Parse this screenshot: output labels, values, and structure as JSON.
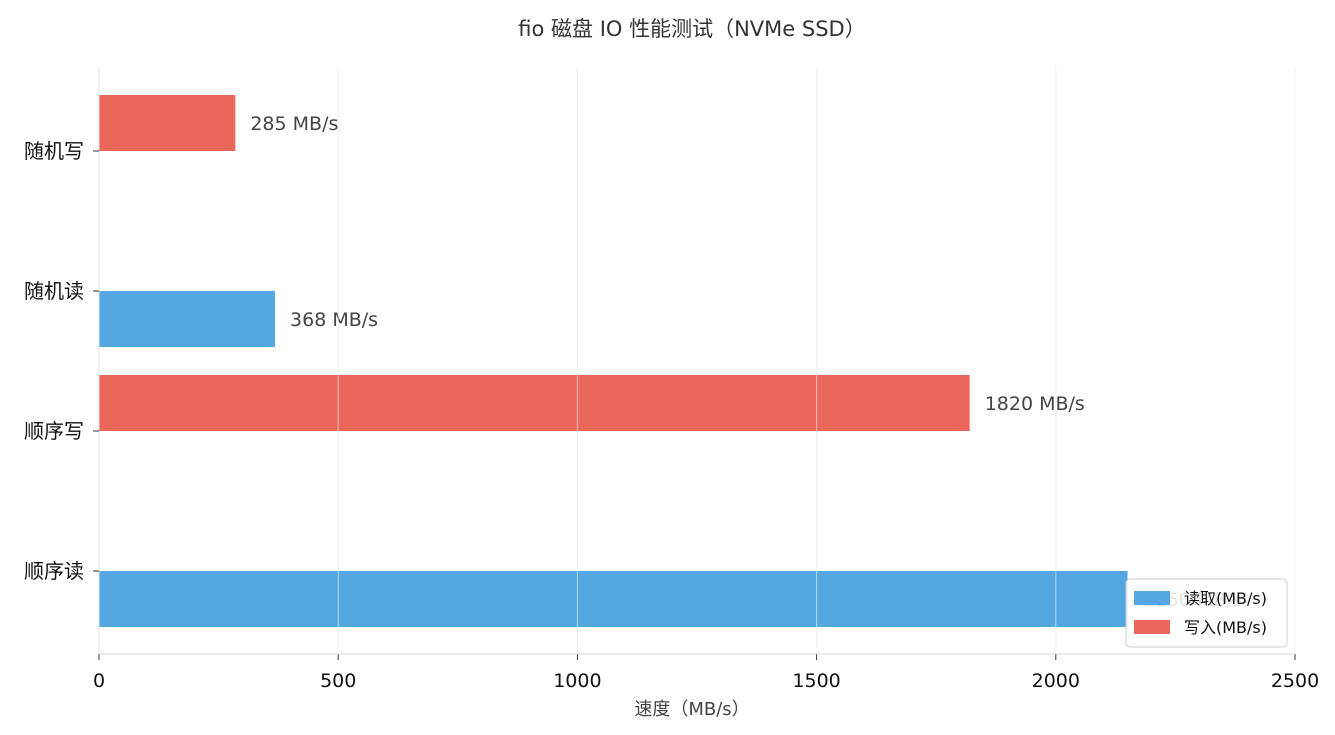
{
  "chart_data": {
    "type": "bar",
    "orientation": "horizontal",
    "title": "fio 磁盘 IO 性能测试（NVMe SSD）",
    "xlabel": "速度（MB/s）",
    "ylabel": "",
    "xlim": [
      0,
      2500
    ],
    "x_ticks": [
      0,
      500,
      1000,
      1500,
      2000,
      2500
    ],
    "categories": [
      "顺序读",
      "顺序写",
      "随机读",
      "随机写"
    ],
    "series": [
      {
        "name": "读取(MB/s)",
        "color": "#54a7e0",
        "values": [
          2150,
          null,
          368,
          null
        ],
        "labels": [
          "2150 MB/s",
          "",
          "368 MB/s",
          ""
        ]
      },
      {
        "name": "写入(MB/s)",
        "color": "#eb675c",
        "values": [
          null,
          1820,
          null,
          285
        ],
        "labels": [
          "",
          "1820 MB/s",
          "",
          "285 MB/s"
        ]
      }
    ],
    "grid": "vertical",
    "legend_position": "lower-right"
  }
}
